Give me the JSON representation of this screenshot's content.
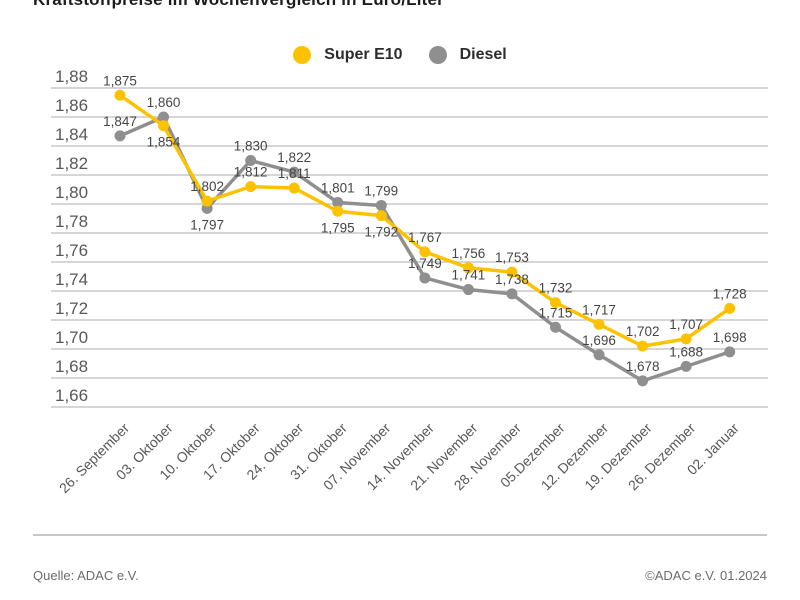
{
  "title": "Kraftstoffpreise im Wochenvergleich in Euro/Liter",
  "legend": {
    "items": [
      {
        "label": "Super E10",
        "color": "#FCC200"
      },
      {
        "label": "Diesel",
        "color": "#8F8F8F"
      }
    ]
  },
  "chart_data": {
    "type": "line",
    "title": "Kraftstoffpreise im Wochenvergleich in Euro/Liter",
    "unit": "Euro/Liter",
    "categories": [
      "26. September",
      "03. Oktober",
      "10. Oktober",
      "17. Oktober",
      "24. Oktober",
      "31. Oktober",
      "07. November",
      "14. November",
      "21. November",
      "28. November",
      "05.Dezember",
      "12. Dezember",
      "19. Dezember",
      "26. Dezember",
      "02. Januar"
    ],
    "series": [
      {
        "name": "Super E10",
        "color": "#FCC200",
        "values": [
          1.875,
          1.854,
          1.802,
          1.812,
          1.811,
          1.795,
          1.792,
          1.767,
          1.756,
          1.753,
          1.732,
          1.717,
          1.702,
          1.707,
          1.728
        ]
      },
      {
        "name": "Diesel",
        "color": "#8F8F8F",
        "values": [
          1.847,
          1.86,
          1.797,
          1.83,
          1.822,
          1.801,
          1.799,
          1.749,
          1.741,
          1.738,
          1.715,
          1.696,
          1.678,
          1.688,
          1.698
        ]
      }
    ],
    "xlabel": "",
    "ylabel": "",
    "ylim": [
      1.66,
      1.88
    ],
    "ytick_step": 0.02,
    "ytick_labels": [
      "1,88",
      "1,86",
      "1,84",
      "1,82",
      "1,80",
      "1,78",
      "1,76",
      "1,74",
      "1,72",
      "1,70",
      "1,68",
      "1,66"
    ],
    "decimal_separator": ",",
    "grid": true,
    "legend_position": "top-center",
    "point_labels": true,
    "grid_color": "#c9c9c9",
    "axis_text_color": "#58585a",
    "point_label_color": "#454545"
  },
  "footer": {
    "source": "Quelle: ADAC e.V.",
    "copyright": "©ADAC e.V. 01.2024"
  }
}
